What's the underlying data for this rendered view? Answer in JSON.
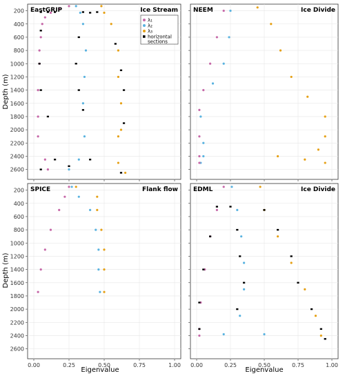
{
  "colors": {
    "l1": "#c668a8",
    "l2": "#5ab3e0",
    "l3": "#e6a116",
    "hs": "#000000"
  },
  "legend": {
    "items": [
      {
        "key": "l1",
        "label": "λ₁"
      },
      {
        "key": "l2",
        "label": "λ₂"
      },
      {
        "key": "l3",
        "label": "λ₃"
      },
      {
        "key": "hs",
        "label": "horizontal sections"
      }
    ]
  },
  "chart_data": [
    {
      "type": "scatter",
      "title": "EastGRIP",
      "subtitle": "Ice Stream",
      "xlabel": "",
      "ylabel": "Depth (m)",
      "xlim": [
        0,
        1
      ],
      "ylim": [
        2750,
        100
      ],
      "xticks": [
        "",
        "",
        "",
        "",
        ""
      ],
      "yticks": [
        "200",
        "400",
        "600",
        "800",
        "1000",
        "1200",
        "1400",
        "1600",
        "1800",
        "2000",
        "2200",
        "2400",
        "2600"
      ],
      "legend": true,
      "series": [
        {
          "name": "λ₁",
          "key": "l1",
          "points": [
            [
              0.25,
              130
            ],
            [
              0.18,
              170
            ],
            [
              0.12,
              230
            ],
            [
              0.08,
              300
            ],
            [
              0.06,
              400
            ],
            [
              0.05,
              600
            ],
            [
              0.04,
              800
            ],
            [
              0.04,
              1000
            ],
            [
              0.03,
              1400
            ],
            [
              0.03,
              1800
            ],
            [
              0.03,
              2100
            ],
            [
              0.08,
              2450
            ],
            [
              0.1,
              2600
            ]
          ]
        },
        {
          "name": "λ₂",
          "key": "l2",
          "points": [
            [
              0.3,
              130
            ],
            [
              0.33,
              230
            ],
            [
              0.35,
              400
            ],
            [
              0.37,
              800
            ],
            [
              0.36,
              1200
            ],
            [
              0.35,
              1600
            ],
            [
              0.36,
              2100
            ],
            [
              0.32,
              2450
            ],
            [
              0.25,
              2600
            ]
          ]
        },
        {
          "name": "λ₃",
          "key": "l3",
          "points": [
            [
              0.48,
              130
            ],
            [
              0.5,
              230
            ],
            [
              0.55,
              400
            ],
            [
              0.6,
              800
            ],
            [
              0.6,
              1200
            ],
            [
              0.62,
              1600
            ],
            [
              0.62,
              2000
            ],
            [
              0.6,
              2100
            ],
            [
              0.6,
              2500
            ],
            [
              0.65,
              2650
            ]
          ]
        },
        {
          "name": "horizontal sections",
          "key": "hs",
          "points": [
            [
              0.05,
              220
            ],
            [
              0.1,
              220
            ],
            [
              0.15,
              220
            ],
            [
              0.35,
              220
            ],
            [
              0.45,
              220
            ],
            [
              0.4,
              230
            ],
            [
              0.05,
              500
            ],
            [
              0.32,
              600
            ],
            [
              0.58,
              700
            ],
            [
              0.04,
              1000
            ],
            [
              0.3,
              1000
            ],
            [
              0.62,
              1100
            ],
            [
              0.05,
              1400
            ],
            [
              0.32,
              1400
            ],
            [
              0.64,
              1400
            ],
            [
              0.1,
              1800
            ],
            [
              0.35,
              1700
            ],
            [
              0.64,
              1900
            ],
            [
              0.15,
              2450
            ],
            [
              0.4,
              2450
            ],
            [
              0.05,
              2600
            ],
            [
              0.25,
              2550
            ],
            [
              0.62,
              2650
            ]
          ]
        }
      ]
    },
    {
      "type": "scatter",
      "title": "NEEM",
      "subtitle": "Ice Divide",
      "xlabel": "",
      "ylabel": "",
      "xlim": [
        0,
        1
      ],
      "ylim": [
        2750,
        100
      ],
      "xticks": [
        "",
        "",
        "",
        "",
        ""
      ],
      "yticks": [
        "",
        "",
        "",
        "",
        "",
        "",
        "",
        "",
        "",
        "",
        "",
        "",
        ""
      ],
      "series": [
        {
          "name": "λ₁",
          "key": "l1",
          "points": [
            [
              0.2,
              200
            ],
            [
              0.15,
              600
            ],
            [
              0.1,
              1000
            ],
            [
              0.05,
              1400
            ],
            [
              0.02,
              1700
            ],
            [
              0.02,
              2100
            ],
            [
              0.02,
              2400
            ],
            [
              0.02,
              2500
            ]
          ]
        },
        {
          "name": "λ₂",
          "key": "l2",
          "points": [
            [
              0.25,
              200
            ],
            [
              0.24,
              600
            ],
            [
              0.2,
              1000
            ],
            [
              0.12,
              1300
            ],
            [
              0.03,
              1800
            ],
            [
              0.05,
              2200
            ],
            [
              0.05,
              2400
            ],
            [
              0.03,
              2500
            ]
          ]
        },
        {
          "name": "λ₃",
          "key": "l3",
          "points": [
            [
              0.45,
              150
            ],
            [
              0.55,
              400
            ],
            [
              0.62,
              800
            ],
            [
              0.7,
              1200
            ],
            [
              0.82,
              1500
            ],
            [
              0.95,
              1800
            ],
            [
              0.95,
              2100
            ],
            [
              0.9,
              2300
            ],
            [
              0.6,
              2400
            ],
            [
              0.8,
              2450
            ],
            [
              0.95,
              2500
            ]
          ]
        }
      ]
    },
    {
      "type": "scatter",
      "title": "SPICE",
      "subtitle": "Flank flow",
      "xlabel": "Eigenvalue",
      "ylabel": "Depth (m)",
      "xlim": [
        0,
        1
      ],
      "ylim": [
        2750,
        100
      ],
      "xticks": [
        "0.00",
        "0.25",
        "0.50",
        "0.75",
        "1.00"
      ],
      "yticks": [
        "200",
        "400",
        "600",
        "800",
        "1000",
        "1200",
        "1400",
        "1600",
        "1800",
        "2000",
        "2200",
        "2400",
        "2600"
      ],
      "series": [
        {
          "name": "λ₁",
          "key": "l1",
          "points": [
            [
              0.25,
              150
            ],
            [
              0.22,
              300
            ],
            [
              0.18,
              500
            ],
            [
              0.12,
              800
            ],
            [
              0.08,
              1100
            ],
            [
              0.05,
              1400
            ],
            [
              0.03,
              1740
            ]
          ]
        },
        {
          "name": "λ₂",
          "key": "l2",
          "points": [
            [
              0.27,
              150
            ],
            [
              0.32,
              300
            ],
            [
              0.4,
              500
            ],
            [
              0.44,
              800
            ],
            [
              0.46,
              1100
            ],
            [
              0.46,
              1400
            ],
            [
              0.47,
              1740
            ]
          ]
        },
        {
          "name": "λ₃",
          "key": "l3",
          "points": [
            [
              0.3,
              150
            ],
            [
              0.45,
              300
            ],
            [
              0.45,
              500
            ],
            [
              0.48,
              800
            ],
            [
              0.5,
              1100
            ],
            [
              0.5,
              1400
            ],
            [
              0.5,
              1740
            ]
          ]
        }
      ]
    },
    {
      "type": "scatter",
      "title": "EDML",
      "subtitle": "Ice Divide",
      "xlabel": "Eigenvalue",
      "ylabel": "",
      "xlim": [
        0,
        1
      ],
      "ylim": [
        2750,
        100
      ],
      "xticks": [
        "0.00",
        "0.25",
        "0.50",
        "0.75",
        "1.00"
      ],
      "yticks": [
        "",
        "",
        "",
        "",
        "",
        "",
        "",
        "",
        "",
        "",
        "",
        "",
        ""
      ],
      "series": [
        {
          "name": "λ₁",
          "key": "l1",
          "points": [
            [
              0.2,
              150
            ],
            [
              0.15,
              500
            ],
            [
              0.1,
              900
            ],
            [
              0.06,
              1400
            ],
            [
              0.03,
              1900
            ],
            [
              0.02,
              2300
            ],
            [
              0.02,
              2400
            ]
          ]
        },
        {
          "name": "λ₂",
          "key": "l2",
          "points": [
            [
              0.26,
              150
            ],
            [
              0.3,
              500
            ],
            [
              0.33,
              900
            ],
            [
              0.35,
              1300
            ],
            [
              0.35,
              1700
            ],
            [
              0.32,
              2100
            ],
            [
              0.2,
              2380
            ],
            [
              0.5,
              2380
            ]
          ]
        },
        {
          "name": "λ₃",
          "key": "l3",
          "points": [
            [
              0.47,
              150
            ],
            [
              0.5,
              500
            ],
            [
              0.6,
              900
            ],
            [
              0.7,
              1300
            ],
            [
              0.8,
              1700
            ],
            [
              0.88,
              2100
            ],
            [
              0.92,
              2400
            ]
          ]
        },
        {
          "name": "horizontal sections",
          "key": "hs",
          "points": [
            [
              0.15,
              450
            ],
            [
              0.1,
              900
            ],
            [
              0.05,
              1400
            ],
            [
              0.02,
              1900
            ],
            [
              0.02,
              2300
            ],
            [
              0.25,
              450
            ],
            [
              0.3,
              800
            ],
            [
              0.32,
              1200
            ],
            [
              0.35,
              1600
            ],
            [
              0.3,
              2000
            ],
            [
              0.5,
              500
            ],
            [
              0.6,
              800
            ],
            [
              0.7,
              1200
            ],
            [
              0.75,
              1600
            ],
            [
              0.85,
              2000
            ],
            [
              0.92,
              2300
            ],
            [
              0.95,
              2450
            ]
          ]
        }
      ]
    }
  ]
}
